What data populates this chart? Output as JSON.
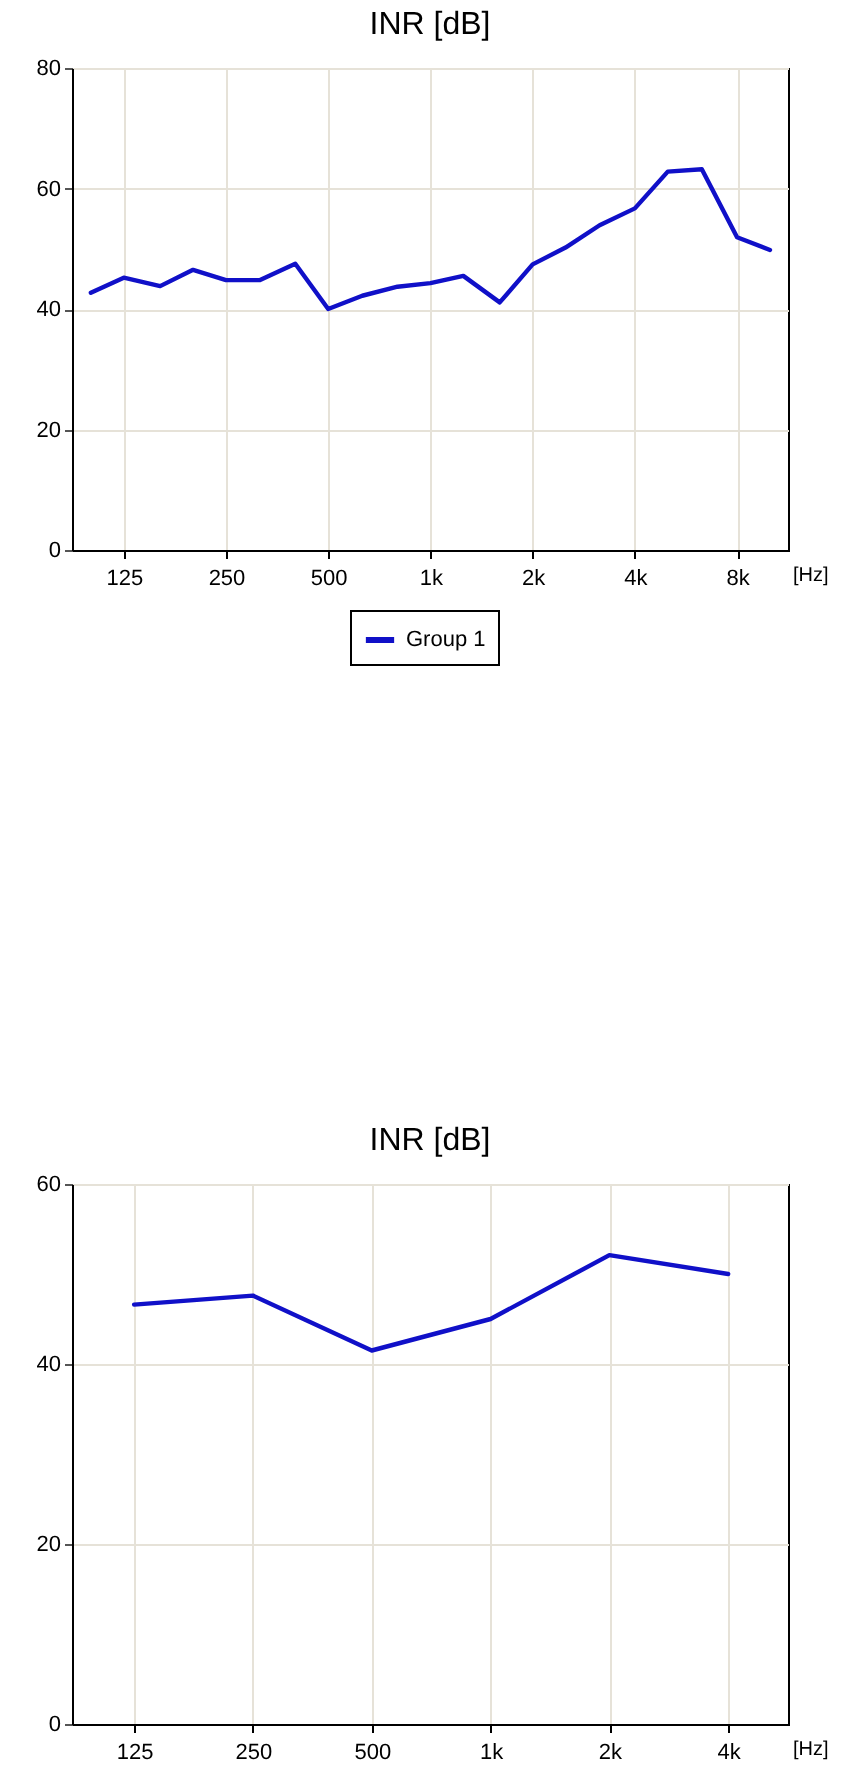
{
  "chart_data": [
    {
      "type": "line",
      "title": "INR [dB]",
      "xlabel": "[Hz]",
      "log": "x",
      "grid": true,
      "legend": "bottom",
      "marker": "none",
      "line_style": "solid",
      "xlim": [
        88,
        11300
      ],
      "xticks": [
        125,
        250,
        500,
        {
          "value": 1000,
          "label": "1k"
        },
        {
          "value": 2000,
          "label": "2k"
        },
        {
          "value": 4000,
          "label": "4k"
        },
        {
          "value": 8000,
          "label": "8k"
        }
      ],
      "ylim": [
        0,
        80
      ],
      "yticks": [
        0,
        20,
        40,
        60,
        80
      ],
      "x": [
        100,
        125,
        160,
        200,
        250,
        315,
        400,
        500,
        630,
        800,
        1000,
        1250,
        1600,
        2000,
        2500,
        3150,
        4000,
        5000,
        6300,
        8000,
        10000
      ],
      "series": [
        {
          "name": "Group 1",
          "color": "#1010c8",
          "values": [
            42.7,
            45.2,
            43.8,
            46.5,
            44.8,
            44.8,
            47.5,
            40.0,
            42.2,
            43.7,
            44.3,
            45.5,
            41.1,
            47.4,
            50.2,
            53.9,
            56.7,
            62.8,
            63.2,
            51.9,
            49.8
          ]
        }
      ]
    },
    {
      "type": "line",
      "title": "INR [dB]",
      "xlabel": "[Hz]",
      "log": "x",
      "grid": true,
      "marker": "none",
      "line_style": "solid",
      "xlim": [
        87,
        5670
      ],
      "xticks": [
        125,
        250,
        500,
        {
          "value": 1000,
          "label": "1k"
        },
        {
          "value": 2000,
          "label": "2k"
        },
        {
          "value": 4000,
          "label": "4k"
        }
      ],
      "ylim": [
        0,
        60
      ],
      "yticks": [
        0,
        20,
        40,
        60
      ],
      "x": [
        125,
        250,
        500,
        1000,
        2000,
        4000
      ],
      "series": [
        {
          "color": "#1010c8",
          "values": [
            46.6,
            47.6,
            41.5,
            45.0,
            52.1,
            50.0
          ]
        }
      ]
    }
  ]
}
